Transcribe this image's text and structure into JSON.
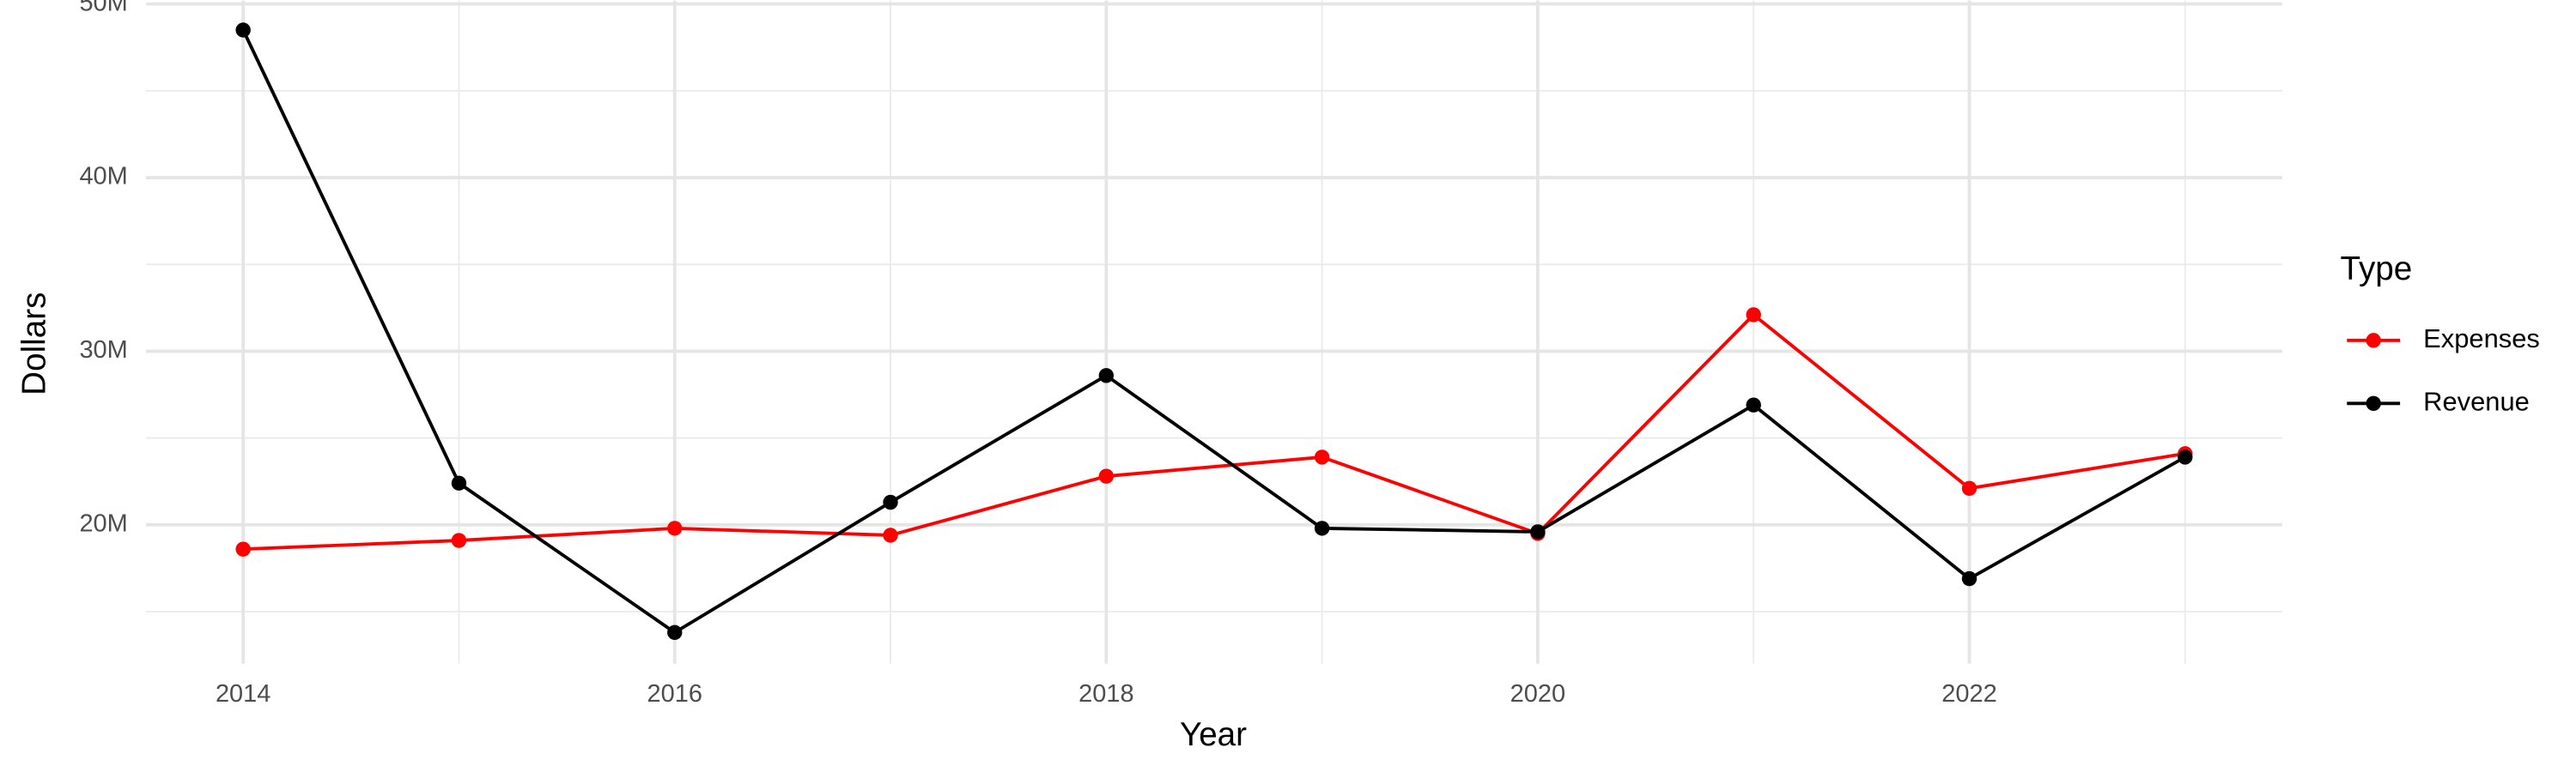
{
  "chart_data": {
    "type": "line",
    "x_label": "Year",
    "y_label": "Dollars",
    "x": [
      2014,
      2015,
      2016,
      2017,
      2018,
      2019,
      2020,
      2021,
      2022,
      2023
    ],
    "series": [
      {
        "name": "Expenses",
        "color": "#ff0000",
        "values": [
          18600000,
          19100000,
          19800000,
          19400000,
          22800000,
          23900000,
          19500000,
          32100000,
          22100000,
          24100000
        ]
      },
      {
        "name": "Revenue",
        "color": "#000000",
        "values": [
          48500000,
          22400000,
          13800000,
          21300000,
          28600000,
          19800000,
          19600000,
          26900000,
          16900000,
          23900000
        ]
      }
    ],
    "xlim": [
      2013.55,
      2023.45
    ],
    "xticks": [
      2014,
      2016,
      2018,
      2020,
      2022
    ],
    "ylim": [
      12000000,
      50200000
    ],
    "yticks": [
      {
        "value": 20000000,
        "label": "20M"
      },
      {
        "value": 30000000,
        "label": "30M"
      },
      {
        "value": 40000000,
        "label": "40M"
      },
      {
        "value": 50000000,
        "label": "50M"
      }
    ],
    "grid": true,
    "legend_title": "Type",
    "legend_position": "right"
  }
}
